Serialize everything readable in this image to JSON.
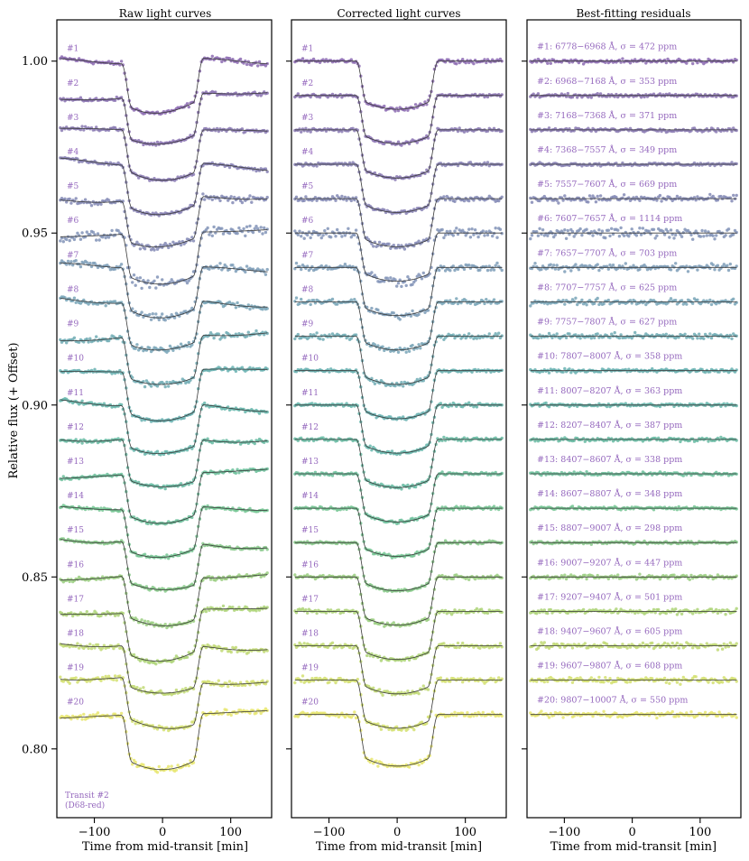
{
  "figure": {
    "ylabel": "Relative flux (+ Offset)",
    "xlabel": "Time from mid-transit [min]",
    "transit_note": [
      "Transit #2",
      "(D68-red)"
    ]
  },
  "panels": [
    {
      "title": "Raw light curves"
    },
    {
      "title": "Corrected light curves"
    },
    {
      "title": "Best-fitting residuals"
    }
  ],
  "chart_data": {
    "type": "scatter",
    "xlim": [
      -155,
      160
    ],
    "ylim": [
      0.78,
      1.012
    ],
    "xticks": [
      -100,
      0,
      100
    ],
    "xtick_labels": [
      "−100",
      "0",
      "100"
    ],
    "yticks": [
      0.8,
      0.85,
      0.9,
      0.95,
      1.0
    ],
    "ytick_labels": [
      "0.80",
      "0.85",
      "0.90",
      "0.95",
      "1.00"
    ],
    "offset_step": 0.01,
    "transit_window_min": [
      -60,
      60
    ],
    "series": [
      {
        "name": "#1",
        "range": "6778−6968 Å",
        "sigma_ppm": 472,
        "depth_raw": 0.015,
        "depth_corr": 0.014
      },
      {
        "name": "#2",
        "range": "6968−7168 Å",
        "sigma_ppm": 353,
        "depth_raw": 0.0145,
        "depth_corr": 0.014
      },
      {
        "name": "#3",
        "range": "7168−7368 Å",
        "sigma_ppm": 371,
        "depth_raw": 0.0145,
        "depth_corr": 0.014
      },
      {
        "name": "#4",
        "range": "7368−7557 Å",
        "sigma_ppm": 349,
        "depth_raw": 0.0145,
        "depth_corr": 0.014
      },
      {
        "name": "#5",
        "range": "7557−7607 Å",
        "sigma_ppm": 669,
        "depth_raw": 0.0145,
        "depth_corr": 0.014
      },
      {
        "name": "#6",
        "range": "7607−7657 Å",
        "sigma_ppm": 1114,
        "depth_raw": 0.015,
        "depth_corr": 0.014
      },
      {
        "name": "#7",
        "range": "7657−7707 Å",
        "sigma_ppm": 703,
        "depth_raw": 0.0145,
        "depth_corr": 0.014
      },
      {
        "name": "#8",
        "range": "7707−7757 Å",
        "sigma_ppm": 625,
        "depth_raw": 0.0145,
        "depth_corr": 0.014
      },
      {
        "name": "#9",
        "range": "7757−7807 Å",
        "sigma_ppm": 627,
        "depth_raw": 0.0145,
        "depth_corr": 0.014
      },
      {
        "name": "#10",
        "range": "7807−8007 Å",
        "sigma_ppm": 358,
        "depth_raw": 0.0145,
        "depth_corr": 0.014
      },
      {
        "name": "#11",
        "range": "8007−8207 Å",
        "sigma_ppm": 363,
        "depth_raw": 0.0145,
        "depth_corr": 0.014
      },
      {
        "name": "#12",
        "range": "8207−8407 Å",
        "sigma_ppm": 387,
        "depth_raw": 0.0145,
        "depth_corr": 0.014
      },
      {
        "name": "#13",
        "range": "8407−8607 Å",
        "sigma_ppm": 338,
        "depth_raw": 0.0145,
        "depth_corr": 0.014
      },
      {
        "name": "#14",
        "range": "8607−8807 Å",
        "sigma_ppm": 348,
        "depth_raw": 0.0145,
        "depth_corr": 0.014
      },
      {
        "name": "#15",
        "range": "8807−9007 Å",
        "sigma_ppm": 298,
        "depth_raw": 0.0145,
        "depth_corr": 0.014
      },
      {
        "name": "#16",
        "range": "9007−9207 Å",
        "sigma_ppm": 447,
        "depth_raw": 0.0145,
        "depth_corr": 0.014
      },
      {
        "name": "#17",
        "range": "9207−9407 Å",
        "sigma_ppm": 501,
        "depth_raw": 0.0145,
        "depth_corr": 0.014
      },
      {
        "name": "#18",
        "range": "9407−9607 Å",
        "sigma_ppm": 605,
        "depth_raw": 0.0145,
        "depth_corr": 0.014
      },
      {
        "name": "#19",
        "range": "9607−9807 Å",
        "sigma_ppm": 608,
        "depth_raw": 0.0145,
        "depth_corr": 0.014
      },
      {
        "name": "#20",
        "range": "9807−10007 Å",
        "sigma_ppm": 550,
        "depth_raw": 0.016,
        "depth_corr": 0.015
      }
    ]
  },
  "colors": {
    "label": "#9467bd",
    "model": "#3a3a3a",
    "viridis_start": "#8c6bb1",
    "viridis_mid": "#5aae9a",
    "viridis_end": "#e8e66e"
  }
}
